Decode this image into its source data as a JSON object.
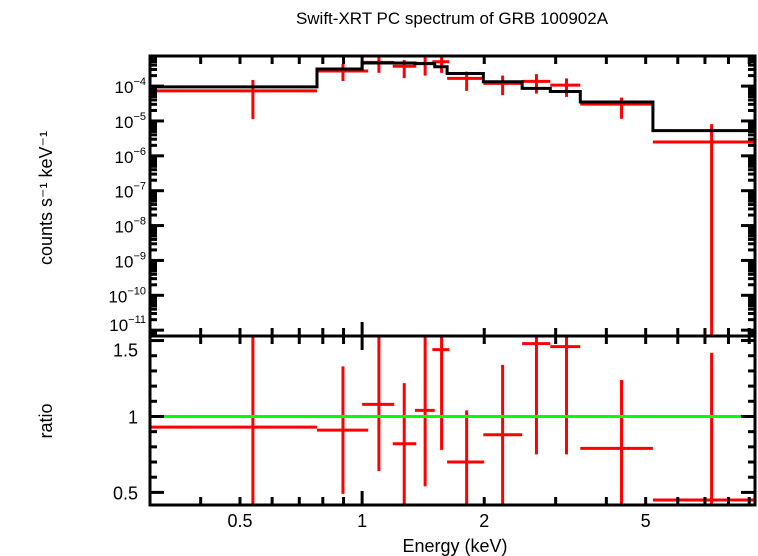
{
  "chart_data": [
    {
      "type": "scatter",
      "panel": "spectrum",
      "title": "Swift-XRT PC spectrum of GRB 100902A",
      "xlabel": "Energy (keV)",
      "ylabel": "counts s⁻¹ keV⁻¹",
      "xscale": "log",
      "yscale": "log",
      "xlim": [
        0.3,
        9.3
      ],
      "ylim": [
        6.8e-12,
        0.00073
      ],
      "ytick_labels": [
        {
          "base": "10",
          "exp": "−4",
          "value": 0.0001
        },
        {
          "base": "10",
          "exp": "−5",
          "value": 1e-05
        },
        {
          "base": "10",
          "exp": "−6",
          "value": 1e-06
        },
        {
          "base": "10",
          "exp": "−7",
          "value": 1e-07
        },
        {
          "base": "10",
          "exp": "−8",
          "value": 1e-08
        },
        {
          "base": "10",
          "exp": "−9",
          "value": 1e-09
        },
        {
          "base": "10",
          "exp": "−10",
          "value": 1e-10
        },
        {
          "base": "10",
          "exp": "−11",
          "value": 1e-11
        }
      ],
      "data_color": "#ff0000",
      "model_color": "#000000",
      "data": [
        {
          "e": 0.538,
          "elo": 0.3,
          "ehi": 0.774,
          "y": 7.3e-05,
          "ylo": 1.13e-05,
          "yhi": 0.00015
        },
        {
          "e": 0.897,
          "elo": 0.774,
          "ehi": 1.035,
          "y": 0.00027,
          "ylo": 0.00014,
          "yhi": 0.00043
        },
        {
          "e": 1.1,
          "elo": 1.0,
          "ehi": 1.2,
          "y": 0.00048,
          "ylo": 0.00024,
          "yhi": 0.00073
        },
        {
          "e": 1.27,
          "elo": 1.19,
          "ehi": 1.36,
          "y": 0.00037,
          "ylo": 0.00017,
          "yhi": 0.00056
        },
        {
          "e": 1.43,
          "elo": 1.35,
          "ehi": 1.51,
          "y": 0.00045,
          "ylo": 0.0002,
          "yhi": 0.00066
        },
        {
          "e": 1.57,
          "elo": 1.49,
          "ehi": 1.64,
          "y": 0.0005,
          "ylo": 0.00024,
          "yhi": 0.00073
        },
        {
          "e": 1.81,
          "elo": 1.62,
          "ehi": 2.0,
          "y": 0.000167,
          "ylo": 7.3e-05,
          "yhi": 0.00026
        },
        {
          "e": 2.22,
          "elo": 1.99,
          "ehi": 2.48,
          "y": 0.00012,
          "ylo": 5.5e-05,
          "yhi": 0.0002
        },
        {
          "e": 2.69,
          "elo": 2.48,
          "ehi": 2.91,
          "y": 0.000137,
          "ylo": 6.1e-05,
          "yhi": 0.00022
        },
        {
          "e": 3.19,
          "elo": 2.91,
          "ehi": 3.45,
          "y": 0.000107,
          "ylo": 4.9e-05,
          "yhi": 0.000166
        },
        {
          "e": 4.36,
          "elo": 3.45,
          "ehi": 5.21,
          "y": 3.05e-05,
          "ylo": 1.15e-05,
          "yhi": 4.7e-05
        },
        {
          "e": 7.27,
          "elo": 5.21,
          "ehi": 9.3,
          "y": 2.5e-06,
          "ylo": 6.8e-12,
          "yhi": 8.1e-06
        }
      ],
      "model_steps": [
        {
          "elo": 0.3,
          "ehi": 0.774,
          "y": 9.5e-05
        },
        {
          "elo": 0.774,
          "ehi": 1.0,
          "y": 0.00031
        },
        {
          "elo": 1.0,
          "ehi": 1.35,
          "y": 0.00046
        },
        {
          "elo": 1.35,
          "ehi": 1.51,
          "y": 0.00044
        },
        {
          "elo": 1.51,
          "ehi": 1.62,
          "y": 0.00036
        },
        {
          "elo": 1.62,
          "ehi": 1.99,
          "y": 0.00023
        },
        {
          "elo": 1.99,
          "ehi": 2.48,
          "y": 0.000133
        },
        {
          "elo": 2.48,
          "ehi": 2.91,
          "y": 8.6e-05
        },
        {
          "elo": 2.91,
          "ehi": 3.45,
          "y": 7e-05
        },
        {
          "elo": 3.45,
          "ehi": 5.21,
          "y": 3.5e-05
        },
        {
          "elo": 5.21,
          "ehi": 9.3,
          "y": 5.3e-06
        }
      ]
    },
    {
      "type": "scatter",
      "panel": "ratio",
      "xlabel": "Energy (keV)",
      "ylabel": "ratio",
      "xscale": "log",
      "yscale": "linear",
      "xlim": [
        0.3,
        9.3
      ],
      "ylim": [
        0.417,
        1.53
      ],
      "xtick_labels": [
        {
          "label": "0.5",
          "value": 0.5
        },
        {
          "label": "1",
          "value": 1
        },
        {
          "label": "2",
          "value": 2
        },
        {
          "label": "5",
          "value": 5
        }
      ],
      "ytick_labels": [
        {
          "label": "1.5",
          "value": 1.5
        },
        {
          "label": "1",
          "value": 1
        },
        {
          "label": "0.5",
          "value": 0.5
        }
      ],
      "reference_line": {
        "y": 1,
        "color": "#00ff00"
      },
      "data_color": "#ff0000",
      "data": [
        {
          "e": 0.538,
          "elo": 0.3,
          "ehi": 0.774,
          "y": 0.93,
          "ylo": 0.417,
          "yhi": 1.53
        },
        {
          "e": 0.897,
          "elo": 0.774,
          "ehi": 1.035,
          "y": 0.91,
          "ylo": 0.49,
          "yhi": 1.33
        },
        {
          "e": 1.1,
          "elo": 1.0,
          "ehi": 1.2,
          "y": 1.08,
          "ylo": 0.64,
          "yhi": 1.53
        },
        {
          "e": 1.27,
          "elo": 1.19,
          "ehi": 1.36,
          "y": 0.82,
          "ylo": 0.417,
          "yhi": 1.22
        },
        {
          "e": 1.43,
          "elo": 1.35,
          "ehi": 1.51,
          "y": 1.04,
          "ylo": 0.54,
          "yhi": 1.53
        },
        {
          "e": 1.57,
          "elo": 1.49,
          "ehi": 1.64,
          "y": 1.44,
          "ylo": 0.78,
          "yhi": 1.53
        },
        {
          "e": 1.81,
          "elo": 1.62,
          "ehi": 2.0,
          "y": 0.7,
          "ylo": 0.417,
          "yhi": 1.04
        },
        {
          "e": 2.22,
          "elo": 1.99,
          "ehi": 2.48,
          "y": 0.88,
          "ylo": 0.417,
          "yhi": 1.34
        },
        {
          "e": 2.69,
          "elo": 2.48,
          "ehi": 2.91,
          "y": 1.48,
          "ylo": 0.75,
          "yhi": 1.53
        },
        {
          "e": 3.19,
          "elo": 2.91,
          "ehi": 3.45,
          "y": 1.46,
          "ylo": 0.75,
          "yhi": 1.53
        },
        {
          "e": 4.36,
          "elo": 3.45,
          "ehi": 5.21,
          "y": 0.79,
          "ylo": 0.417,
          "yhi": 1.24
        },
        {
          "e": 7.27,
          "elo": 5.21,
          "ehi": 9.3,
          "y": 0.45,
          "ylo": 0.417,
          "yhi": 1.42
        }
      ]
    }
  ]
}
